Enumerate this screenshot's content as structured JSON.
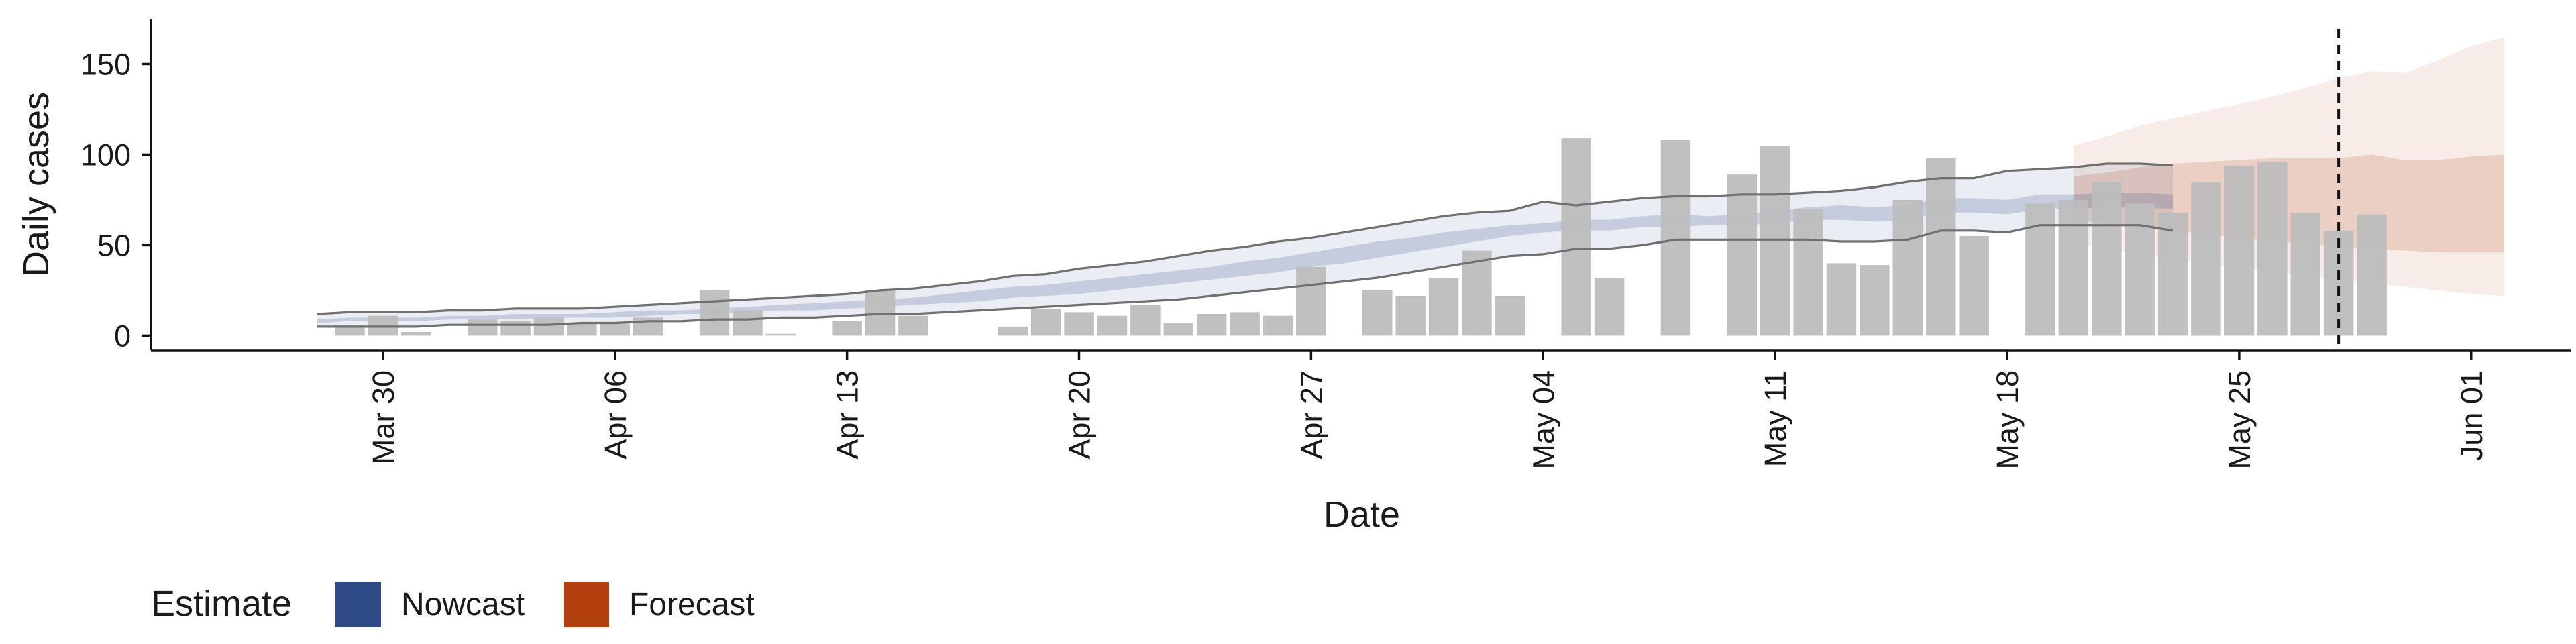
{
  "chart_data": {
    "type": "bar",
    "xlabel": "Date",
    "ylabel": "Daily cases",
    "ylim": [
      -8,
      175
    ],
    "yticks": [
      0,
      50,
      100,
      150
    ],
    "x_range": [
      "2020-03-23",
      "2020-06-04"
    ],
    "xticks": [
      {
        "date": "2020-03-30",
        "label": "Mar 30"
      },
      {
        "date": "2020-04-06",
        "label": "Apr 06"
      },
      {
        "date": "2020-04-13",
        "label": "Apr 13"
      },
      {
        "date": "2020-04-20",
        "label": "Apr 20"
      },
      {
        "date": "2020-04-27",
        "label": "Apr 27"
      },
      {
        "date": "2020-05-04",
        "label": "May 04"
      },
      {
        "date": "2020-05-11",
        "label": "May 11"
      },
      {
        "date": "2020-05-18",
        "label": "May 18"
      },
      {
        "date": "2020-05-25",
        "label": "May 25"
      },
      {
        "date": "2020-06-01",
        "label": "Jun 01"
      }
    ],
    "vline_date": "2020-05-28",
    "bar_color": "#bdbdbd",
    "bars": {
      "start_date": "2020-03-29",
      "values": [
        6,
        11,
        2,
        0,
        9,
        8,
        10,
        7,
        7,
        10,
        0,
        25,
        14,
        1,
        0,
        8,
        25,
        11,
        0,
        0,
        5,
        15,
        13,
        11,
        17,
        7,
        12,
        13,
        11,
        38,
        0,
        25,
        22,
        32,
        47,
        22,
        0,
        109,
        32,
        0,
        108,
        0,
        89,
        105,
        70,
        40,
        39,
        75,
        98,
        55,
        0,
        73,
        75,
        85,
        73,
        68,
        85,
        94,
        96,
        68,
        58,
        67
      ]
    },
    "series": [
      {
        "name": "Nowcast",
        "color": "#2e4a87",
        "start_date": "2020-03-28",
        "lower90": [
          5,
          5,
          5,
          5,
          6,
          6,
          6,
          6,
          7,
          7,
          8,
          8,
          9,
          9,
          10,
          10,
          11,
          12,
          12,
          13,
          14,
          15,
          16,
          17,
          18,
          19,
          20,
          22,
          24,
          26,
          28,
          30,
          32,
          35,
          38,
          41,
          44,
          45,
          48,
          48,
          50,
          53,
          53,
          53,
          53,
          53,
          52,
          52,
          53,
          58,
          58,
          57,
          61,
          61,
          61,
          61,
          58
        ],
        "upper90": [
          12,
          13,
          13,
          13,
          14,
          14,
          15,
          15,
          15,
          16,
          17,
          18,
          19,
          20,
          21,
          22,
          23,
          25,
          26,
          28,
          30,
          33,
          34,
          37,
          39,
          41,
          44,
          47,
          49,
          52,
          54,
          57,
          60,
          63,
          66,
          68,
          69,
          74,
          72,
          74,
          76,
          77,
          77,
          78,
          78,
          79,
          80,
          82,
          85,
          87,
          87,
          91,
          92,
          93,
          95,
          95,
          94
        ],
        "lower50": [
          7,
          8,
          8,
          8,
          9,
          9,
          9,
          10,
          10,
          10,
          11,
          12,
          12,
          13,
          14,
          14,
          15,
          16,
          17,
          18,
          19,
          21,
          22,
          23,
          25,
          27,
          29,
          31,
          33,
          35,
          38,
          40,
          43,
          46,
          49,
          52,
          55,
          57,
          58,
          58,
          60,
          60,
          61,
          61,
          62,
          64,
          64,
          63,
          64,
          68,
          68,
          67,
          70,
          70,
          71,
          71,
          70
        ],
        "upper50": [
          9,
          10,
          10,
          10,
          11,
          11,
          12,
          12,
          12,
          13,
          14,
          14,
          15,
          16,
          17,
          18,
          19,
          20,
          21,
          23,
          25,
          27,
          28,
          30,
          32,
          34,
          36,
          38,
          41,
          43,
          46,
          49,
          52,
          54,
          57,
          59,
          61,
          62,
          64,
          64,
          66,
          67,
          66,
          67,
          69,
          71,
          72,
          71,
          72,
          76,
          76,
          75,
          78,
          78,
          79,
          79,
          78
        ]
      },
      {
        "name": "Forecast",
        "color": "#b5400f",
        "start_date": "2020-05-20",
        "lower90": [
          52,
          48,
          45,
          42,
          40,
          37,
          35,
          33,
          31,
          29,
          27,
          25,
          23,
          22
        ],
        "upper90": [
          105,
          110,
          116,
          120,
          124,
          128,
          132,
          137,
          142,
          146,
          145,
          152,
          160,
          165
        ],
        "lower50": [
          64,
          63,
          60,
          58,
          56,
          54,
          52,
          51,
          49,
          48,
          47,
          46,
          46,
          46
        ],
        "upper50": [
          88,
          90,
          93,
          95,
          96,
          97,
          98,
          98,
          98,
          100,
          97,
          97,
          99,
          100
        ]
      }
    ],
    "legend": {
      "title": "Estimate",
      "position": "bottom-left",
      "items": [
        {
          "label": "Nowcast",
          "color": "#2e4a87"
        },
        {
          "label": "Forecast",
          "color": "#b5400f"
        }
      ]
    }
  }
}
